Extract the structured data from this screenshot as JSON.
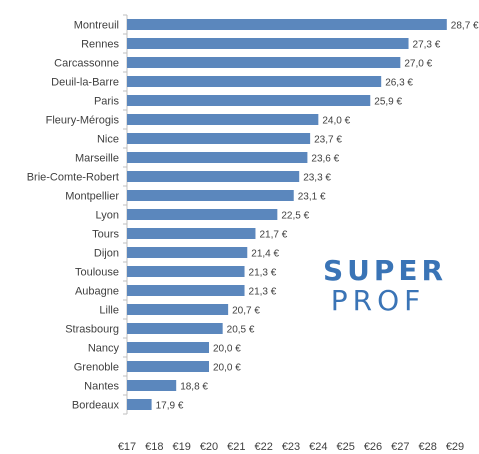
{
  "chart_data": {
    "type": "bar",
    "orientation": "horizontal",
    "categories": [
      "Montreuil",
      "Rennes",
      "Carcassonne",
      "Deuil-la-Barre",
      "Paris",
      "Fleury-Mérogis",
      "Nice",
      "Marseille",
      "Brie-Comte-Robert",
      "Montpellier",
      "Lyon",
      "Tours",
      "Dijon",
      "Toulouse",
      "Aubagne",
      "Lille",
      "Strasbourg",
      "Nancy",
      "Grenoble",
      "Nantes",
      "Bordeaux"
    ],
    "values": [
      28.7,
      27.3,
      27.0,
      26.3,
      25.9,
      24.0,
      23.7,
      23.6,
      23.3,
      23.1,
      22.5,
      21.7,
      21.4,
      21.3,
      21.3,
      20.7,
      20.5,
      20.0,
      20.0,
      18.8,
      17.9
    ],
    "value_labels": [
      "28,7 €",
      "27,3 €",
      "27,0 €",
      "26,3 €",
      "25,9 €",
      "24,0 €",
      "23,7 €",
      "23,6 €",
      "23,3 €",
      "23,1 €",
      "22,5 €",
      "21,7 €",
      "21,4 €",
      "21,3 €",
      "21,3 €",
      "20,7 €",
      "20,5 €",
      "20,0 €",
      "20,0 €",
      "18,8 €",
      "17,9 €"
    ],
    "xlim": [
      17,
      29
    ],
    "xticks": [
      "€17",
      "€18",
      "€19",
      "€20",
      "€21",
      "€22",
      "€23",
      "€24",
      "€25",
      "€26",
      "€27",
      "€28",
      "€29"
    ],
    "title": "",
    "xlabel": "",
    "ylabel": "",
    "grid": false,
    "bar_color": "#5b87bd"
  },
  "logo": {
    "line1": "SUPER",
    "line2": "PROF",
    "color": "#3a74b6"
  }
}
